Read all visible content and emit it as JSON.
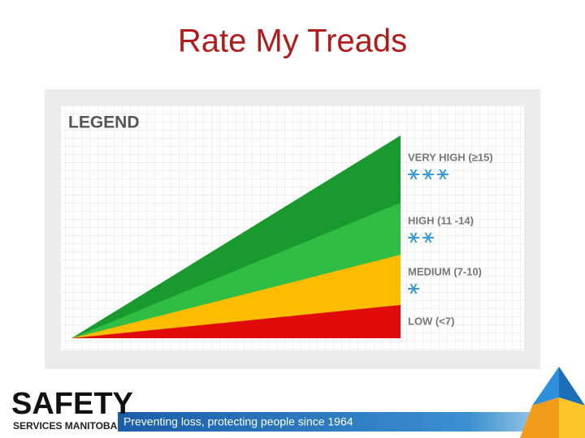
{
  "title": "Rate My Treads",
  "legend": {
    "title": "LEGEND",
    "tiers": [
      {
        "label": "VERY HIGH (≥15)",
        "snowflakes": 3
      },
      {
        "label": "HIGH (11 -14)",
        "snowflakes": 2
      },
      {
        "label": "MEDIUM (7-10)",
        "snowflakes": 1
      },
      {
        "label": "LOW (<7)",
        "snowflakes": 0
      }
    ]
  },
  "footer": {
    "logo": "SAFETY",
    "logo_subtitle": "SERVICES MANITOBA",
    "tagline": "Preventing loss, protecting people since 1964"
  }
}
